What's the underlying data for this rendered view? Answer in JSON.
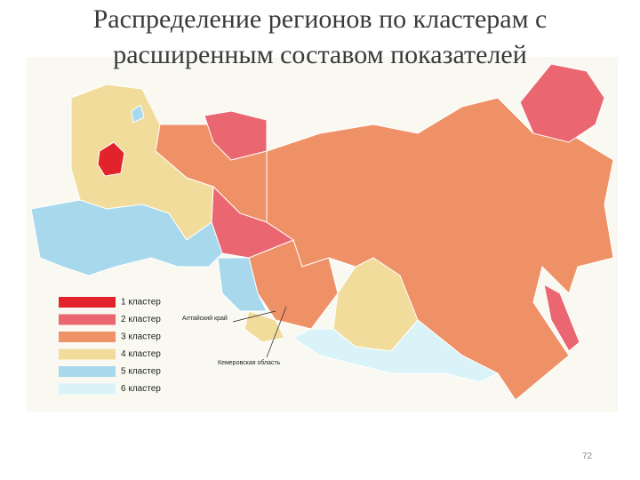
{
  "title": [
    "Распределение регионов по кластерам с",
    "расширенным составом показателей"
  ],
  "legend": [
    {
      "label": "1 кластер",
      "color": "#e3232b"
    },
    {
      "label": "2 кластер",
      "color": "#ea6670"
    },
    {
      "label": "3 кластер",
      "color": "#ef9167"
    },
    {
      "label": "4 кластер",
      "color": "#f2dc9c"
    },
    {
      "label": "5 кластер",
      "color": "#a7d8ec"
    },
    {
      "label": "6 кластер",
      "color": "#d9f3f8"
    }
  ],
  "annotations": [
    "Алтайский край",
    "Кемеровская область"
  ],
  "page_number": "72"
}
